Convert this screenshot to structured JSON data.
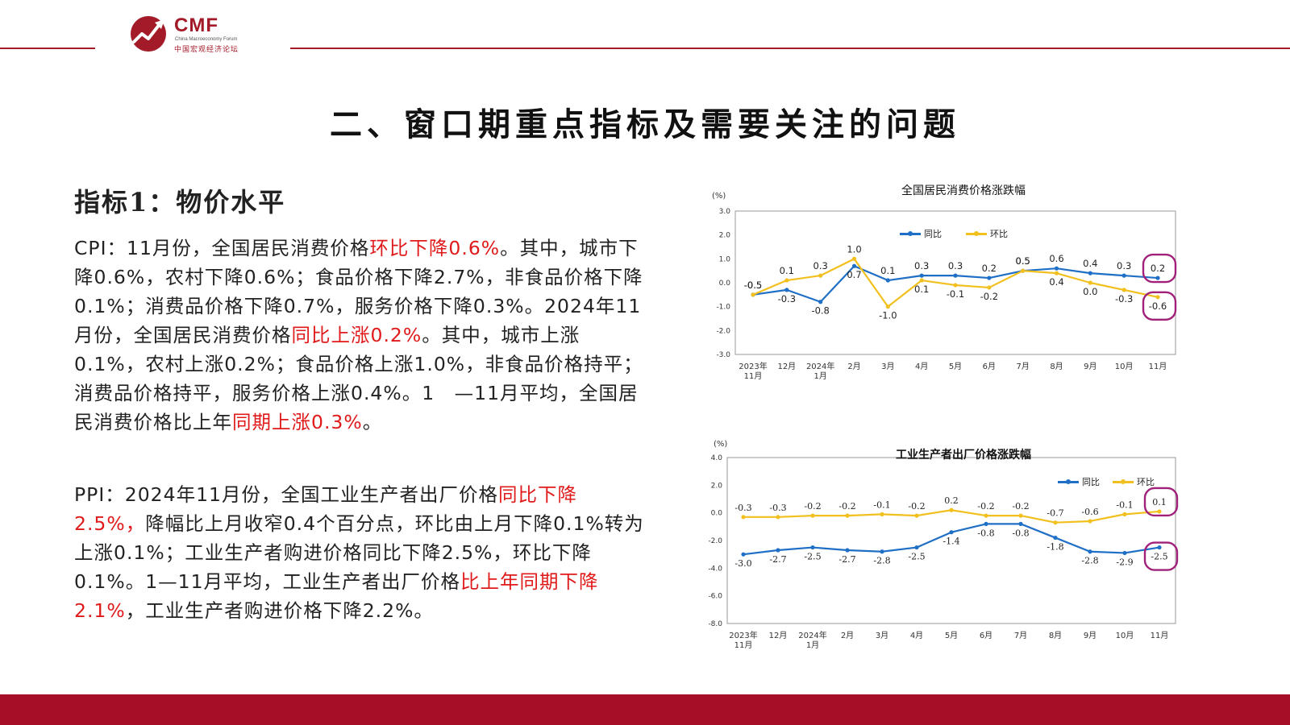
{
  "header": {
    "brand": "CMF",
    "brand_en": "China Macroeconomy Forum",
    "brand_cn": "中国宏观经济论坛",
    "accent_color": "#a31a28"
  },
  "title": "二、窗口期重点指标及需要关注的问题",
  "indicator": "指标1：物价水平",
  "cpi_paragraph": [
    {
      "text": "CPI：11月份，全国居民消费价格",
      "hl": false
    },
    {
      "text": "环比下降0.6%",
      "hl": true
    },
    {
      "text": "。其中，城市下降0.6%，农村下降0.6%；食品价格下降2.7%，非食品价格下降0.1%；消费品价格下降0.7%，服务价格下降0.3%。2024年11月份，全国居民消费价格",
      "hl": false
    },
    {
      "text": "同比上涨0.2%",
      "hl": true
    },
    {
      "text": "。其中，城市上涨0.1%，农村上涨0.2%；食品价格上涨1.0%，非食品价格持平；消费品价格持平，服务价格上涨0.4%。1　—11月平均，全国居民消费价格比上年",
      "hl": false
    },
    {
      "text": "同期上涨0.3%",
      "hl": true
    },
    {
      "text": "。",
      "hl": false
    }
  ],
  "ppi_paragraph": [
    {
      "text": "PPI：2024年11月份，全国工业生产者出厂价格",
      "hl": false
    },
    {
      "text": "同比下降2.5%，",
      "hl": true
    },
    {
      "text": "降幅比上月收窄0.4个百分点，环比由上月下降0.1%转为上涨0.1%；工业生产者购进价格同比下降2.5%，环比下降0.1%。1—11月平均，工业生产者出厂价格",
      "hl": false
    },
    {
      "text": "比上年同期下降2.1%",
      "hl": true
    },
    {
      "text": "，工业生产者购进价格下降2.2%。",
      "hl": false
    }
  ],
  "colors": {
    "highlight": "#e01a1a",
    "series_yoy": "#1f6fc6",
    "series_mom": "#f2c01e",
    "circle": "#a0207a",
    "footer": "#a50e25"
  },
  "chart_data": [
    {
      "type": "line",
      "title": "全国居民消费价格涨跌幅",
      "unit": "(%)",
      "categories": [
        "2023年11月",
        "12月",
        "2024年1月",
        "2月",
        "3月",
        "4月",
        "5月",
        "6月",
        "7月",
        "8月",
        "9月",
        "10月",
        "11月"
      ],
      "yticks": [
        "3.0",
        "2.0",
        "1.0",
        "0.0",
        "-1.0",
        "-2.0",
        "-3.0"
      ],
      "ylim": [
        -3,
        3
      ],
      "legend_position": "top-center",
      "grid": false,
      "series": [
        {
          "name": "同比",
          "values": [
            -0.5,
            -0.3,
            -0.8,
            0.7,
            0.1,
            0.3,
            0.3,
            0.2,
            0.5,
            0.6,
            0.4,
            0.3,
            0.2
          ],
          "labels": [
            "-0.5",
            "-0.3",
            "-0.8",
            "0.7",
            "0.1",
            "0.3",
            "0.3",
            "0.2",
            "0.5",
            "0.6",
            "0.4",
            "0.3",
            "0.2"
          ]
        },
        {
          "name": "环比",
          "values": [
            -0.5,
            0.1,
            0.3,
            1.0,
            -1.0,
            0.1,
            -0.1,
            -0.2,
            0.5,
            0.4,
            0.0,
            -0.3,
            -0.6
          ],
          "labels": [
            "-0.5",
            "0.1",
            "0.3",
            "1.0",
            "-1.0",
            "0.1",
            "-0.1",
            "-0.2",
            "0.5",
            "0.4",
            "0.0",
            "-0.3",
            "-0.6"
          ]
        }
      ],
      "circled": [
        "0.2",
        "-0.6"
      ]
    },
    {
      "type": "line",
      "title": "工业生产者出厂价格涨跌幅",
      "unit": "(%)",
      "categories": [
        "2023年11月",
        "12月",
        "2024年1月",
        "2月",
        "3月",
        "4月",
        "5月",
        "6月",
        "7月",
        "8月",
        "9月",
        "10月",
        "11月"
      ],
      "yticks": [
        "4.0",
        "2.0",
        "0.0",
        "-2.0",
        "-4.0",
        "-6.0",
        "-8.0"
      ],
      "ylim": [
        -8,
        4
      ],
      "legend_position": "top-right",
      "grid": false,
      "series": [
        {
          "name": "同比",
          "values": [
            -3.0,
            -2.7,
            -2.5,
            -2.7,
            -2.8,
            -2.5,
            -1.4,
            -0.8,
            -0.8,
            -1.8,
            -2.8,
            -2.9,
            -2.5
          ],
          "labels": [
            "-3.0",
            "-2.7",
            "-2.5",
            "-2.7",
            "-2.8",
            "-2.5",
            "-1.4",
            "-0.8",
            "-0.8",
            "-1.8",
            "-2.8",
            "-2.9",
            "-2.5"
          ]
        },
        {
          "name": "环比",
          "values": [
            -0.3,
            -0.3,
            -0.2,
            -0.2,
            -0.1,
            -0.2,
            0.2,
            -0.2,
            -0.2,
            -0.7,
            -0.6,
            -0.1,
            0.1
          ],
          "labels": [
            "-0.3",
            "-0.3",
            "-0.2",
            "-0.2",
            "-0.1",
            "-0.2",
            "0.2",
            "-0.2",
            "-0.2",
            "-0.7",
            "-0.6",
            "-0.1",
            "0.1"
          ]
        }
      ],
      "circled": [
        "0.1",
        "-2.5"
      ]
    }
  ]
}
